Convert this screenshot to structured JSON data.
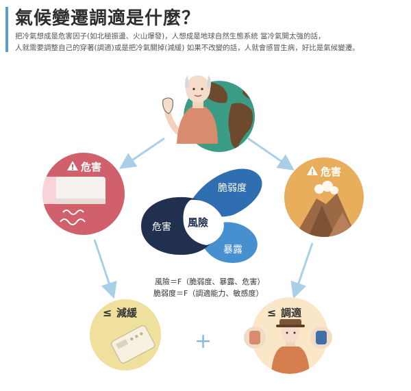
{
  "title": "氣候變遷調適是什麼？",
  "intro_lines": [
    "把冷氣想成是危害因子(如北極振盪、火山爆發)，人想成是地球自然生態系統 當冷氣開太強的話，",
    "人就需要調整自己的穿著(調適)或是把冷氣關掉(減緩) 如果不改變的話，人就會感冒生病，好比是氣候變遷。"
  ],
  "hazard_left_label": "危害",
  "hazard_right_label": "危害",
  "venn": {
    "hazard": "危害",
    "vulnerability": "脆弱度",
    "exposure": "暴露",
    "risk": "風險"
  },
  "formulas": [
    "風險＝F（脆弱度、暴露、危害）",
    "脆弱度＝F（調適能力、敏感度）"
  ],
  "mitigation_label": "減緩",
  "adaptation_label": "調適",
  "le_symbol": "≤",
  "plus_symbol": "+",
  "colors": {
    "red_circle": "#d0606b",
    "orange_circle": "#e8ae5c",
    "yellow_circle": "#efe19d",
    "cream_circle": "#fae7c7",
    "venn_dark": "#22304f",
    "venn_blue": "#2f6eb0",
    "venn_light": "#4790cf",
    "arrow": "#a9cfe8",
    "globe_sea": "#3b9c86",
    "globe_land": "#6d4a2e"
  }
}
